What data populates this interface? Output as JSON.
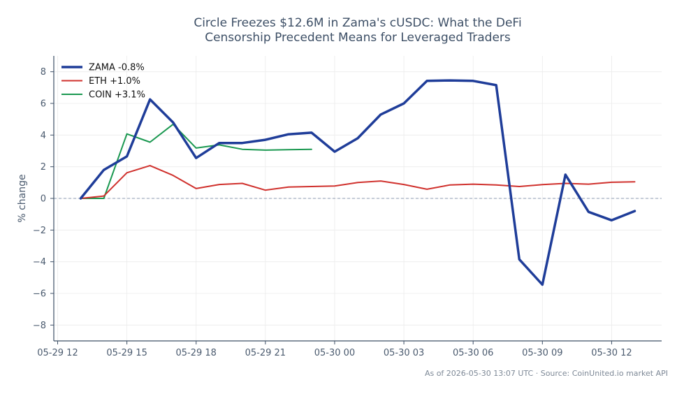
{
  "chart_data": {
    "type": "line",
    "title_line1": "Circle Freezes $12.6M in Zama's cUSDC: What the DeFi",
    "title_line2": "Censorship Precedent Means for Leveraged Traders",
    "ylabel": "% change",
    "xlabel": "",
    "ylim": [
      -9,
      9
    ],
    "yticks": [
      8,
      6,
      4,
      2,
      0,
      -2,
      -4,
      -6,
      -8
    ],
    "ytick_labels": [
      "8",
      "6",
      "4",
      "2",
      "0",
      "−2",
      "−4",
      "−6",
      "−8"
    ],
    "xlim": [
      "2026-05-29 11:50",
      "2026-05-30 14:10"
    ],
    "xticks": [
      "2026-05-29 12:00",
      "2026-05-29 15:00",
      "2026-05-29 18:00",
      "2026-05-29 21:00",
      "2026-05-30 00:00",
      "2026-05-30 03:00",
      "2026-05-30 06:00",
      "2026-05-30 09:00",
      "2026-05-30 12:00"
    ],
    "xtick_labels": [
      "05-29 12",
      "05-29 15",
      "05-29 18",
      "05-29 21",
      "05-30 00",
      "05-30 03",
      "05-30 06",
      "05-30 09",
      "05-30 12"
    ],
    "grid": true,
    "zero_line": true,
    "legend_position": "top-left",
    "series": [
      {
        "name": "ZAMA -0.8%",
        "color": "#1f3d99",
        "x": [
          "2026-05-29 13:00",
          "2026-05-29 14:00",
          "2026-05-29 15:00",
          "2026-05-29 16:00",
          "2026-05-29 17:00",
          "2026-05-29 18:00",
          "2026-05-29 19:00",
          "2026-05-29 20:00",
          "2026-05-29 21:00",
          "2026-05-29 22:00",
          "2026-05-29 23:00",
          "2026-05-30 00:00",
          "2026-05-30 01:00",
          "2026-05-30 02:00",
          "2026-05-30 03:00",
          "2026-05-30 04:00",
          "2026-05-30 05:00",
          "2026-05-30 06:00",
          "2026-05-30 07:00",
          "2026-05-30 08:00",
          "2026-05-30 09:00",
          "2026-05-30 10:00",
          "2026-05-30 11:00",
          "2026-05-30 12:00",
          "2026-05-30 13:00"
        ],
        "y": [
          0.0,
          1.8,
          2.65,
          6.25,
          4.8,
          2.55,
          3.5,
          3.5,
          3.7,
          4.05,
          4.15,
          2.95,
          3.8,
          5.3,
          6.0,
          7.42,
          7.45,
          7.42,
          7.15,
          -3.85,
          -5.45,
          1.5,
          -0.85,
          -1.38,
          -0.8
        ]
      },
      {
        "name": "ETH +1.0%",
        "color": "#d0312d",
        "x": [
          "2026-05-29 13:00",
          "2026-05-29 14:00",
          "2026-05-29 15:00",
          "2026-05-29 16:00",
          "2026-05-29 17:00",
          "2026-05-29 18:00",
          "2026-05-29 19:00",
          "2026-05-29 20:00",
          "2026-05-29 21:00",
          "2026-05-29 22:00",
          "2026-05-29 23:00",
          "2026-05-30 00:00",
          "2026-05-30 01:00",
          "2026-05-30 02:00",
          "2026-05-30 03:00",
          "2026-05-30 04:00",
          "2026-05-30 05:00",
          "2026-05-30 06:00",
          "2026-05-30 07:00",
          "2026-05-30 08:00",
          "2026-05-30 09:00",
          "2026-05-30 10:00",
          "2026-05-30 11:00",
          "2026-05-30 12:00",
          "2026-05-30 13:00"
        ],
        "y": [
          0.0,
          0.15,
          1.62,
          2.07,
          1.45,
          0.62,
          0.88,
          0.95,
          0.52,
          0.72,
          0.75,
          0.78,
          1.0,
          1.1,
          0.88,
          0.58,
          0.85,
          0.9,
          0.85,
          0.75,
          0.87,
          0.95,
          0.9,
          1.02,
          1.05
        ]
      },
      {
        "name": "COIN +3.1%",
        "color": "#1a9850",
        "x": [
          "2026-05-29 13:00",
          "2026-05-29 14:00",
          "2026-05-29 15:00",
          "2026-05-29 16:00",
          "2026-05-29 17:00",
          "2026-05-29 18:00",
          "2026-05-29 19:00",
          "2026-05-29 20:00",
          "2026-05-29 21:00",
          "2026-05-29 22:00",
          "2026-05-29 23:00"
        ],
        "y": [
          0.0,
          0.0,
          4.07,
          3.55,
          4.68,
          3.18,
          3.38,
          3.1,
          3.05,
          3.08,
          3.1
        ]
      }
    ],
    "footer": "As of 2026-05-30 13:07 UTC · Source: CoinUnited.io market API"
  }
}
